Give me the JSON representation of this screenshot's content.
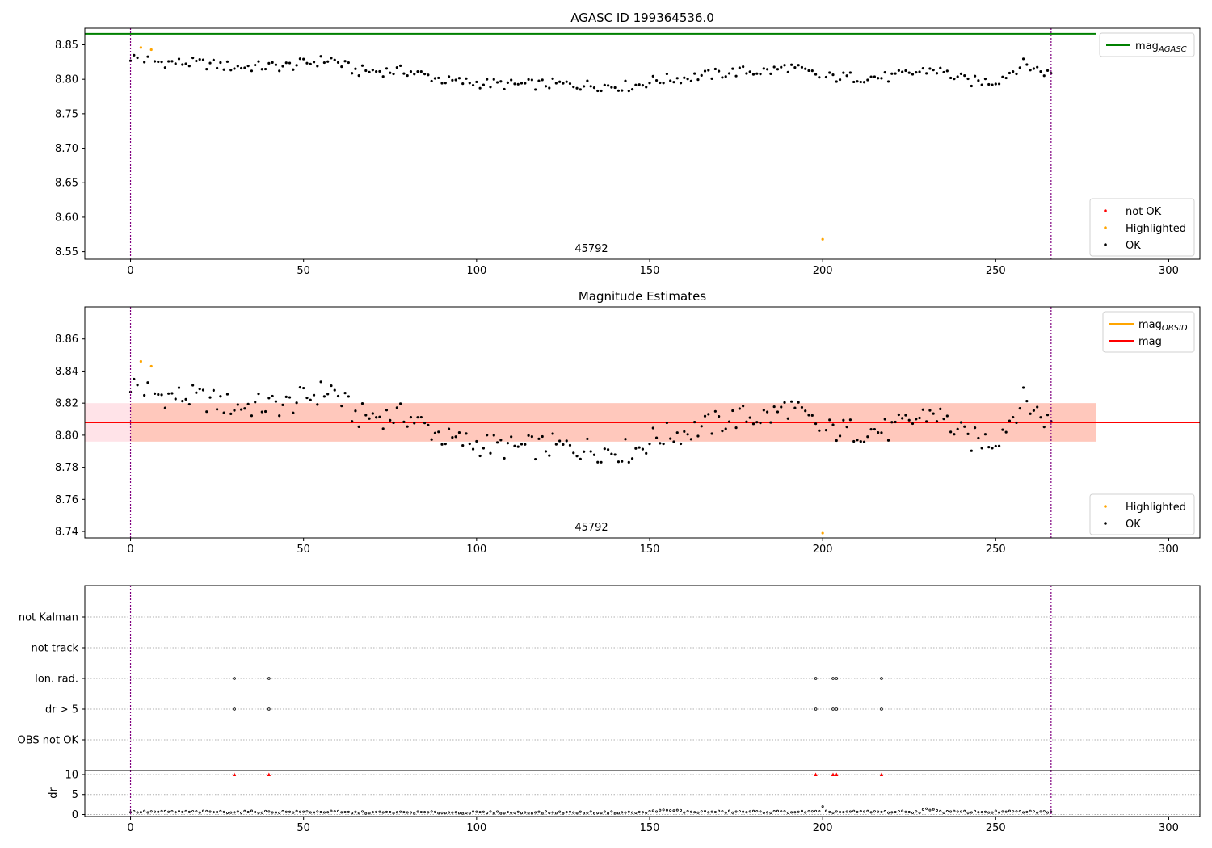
{
  "chart_data": [
    {
      "type": "scatter",
      "title": "AGASC ID 199364536.0",
      "xlabel": "",
      "ylabel": "",
      "xlim": [
        -13.2,
        309
      ],
      "ylim": [
        8.539,
        8.874
      ],
      "xticks": [
        0,
        50,
        100,
        150,
        200,
        250,
        300
      ],
      "yticks": [
        8.55,
        8.6,
        8.65,
        8.7,
        8.75,
        8.8,
        8.85
      ],
      "annotation": "45792",
      "hline": {
        "name": "mag_AGASC",
        "value": 8.866,
        "color": "#008000",
        "x_range": [
          -13.2,
          279
        ]
      },
      "vlines": [
        0,
        266
      ],
      "legends": [
        {
          "position": "top-right",
          "entries": [
            {
              "label": "mag",
              "sub": "AGASC",
              "color": "#008000",
              "kind": "line"
            }
          ]
        },
        {
          "position": "bottom-right",
          "entries": [
            {
              "label": "not OK",
              "color": "#ff0000",
              "kind": "dot"
            },
            {
              "label": "Highlighted",
              "color": "#ffa500",
              "kind": "dot"
            },
            {
              "label": "OK",
              "color": "#000000",
              "kind": "dot"
            }
          ]
        }
      ]
    },
    {
      "type": "scatter",
      "title": "Magnitude Estimates",
      "xlabel": "",
      "ylabel": "",
      "xlim": [
        -13.2,
        309
      ],
      "ylim": [
        8.736,
        8.88
      ],
      "xticks": [
        0,
        50,
        100,
        150,
        200,
        250,
        300
      ],
      "yticks": [
        8.74,
        8.76,
        8.78,
        8.8,
        8.82,
        8.84,
        8.86
      ],
      "annotation": "45792",
      "mean_line": {
        "name": "mag",
        "value": 8.808,
        "color": "#ff0000"
      },
      "bands": [
        {
          "y": [
            8.796,
            8.82
          ],
          "x_range": [
            -13.2,
            279
          ],
          "color": "#ffc0cb"
        },
        {
          "y": [
            8.796,
            8.82
          ],
          "x_range": [
            0,
            279
          ],
          "color": "#ffa07a"
        }
      ],
      "vlines": [
        0,
        266
      ],
      "legends": [
        {
          "position": "top-right",
          "entries": [
            {
              "label": "mag",
              "sub": "OBSID",
              "color": "#ffa500",
              "kind": "line"
            },
            {
              "label": "mag",
              "sub": "",
              "color": "#ff0000",
              "kind": "line"
            }
          ]
        },
        {
          "position": "bottom-right",
          "entries": [
            {
              "label": "Highlighted",
              "color": "#ffa500",
              "kind": "dot"
            },
            {
              "label": "OK",
              "color": "#000000",
              "kind": "dot"
            }
          ]
        }
      ]
    },
    {
      "type": "scatter",
      "title": "",
      "xlim": [
        -13.2,
        309
      ],
      "flag_categories": [
        "not Kalman",
        "not track",
        "Ion. rad.",
        "dr > 5",
        "OBS not OK"
      ],
      "flags": {
        "Ion. rad.": [
          30,
          40,
          198,
          203,
          204,
          217
        ],
        "dr > 5": [
          30,
          40,
          198,
          203,
          204,
          217
        ]
      },
      "dr_panel": {
        "ylabel": "dr",
        "ylim": [
          -0.5,
          11
        ],
        "yticks": [
          0,
          5,
          10
        ],
        "xticks": [
          0,
          50,
          100,
          150,
          200,
          250,
          300
        ],
        "capped_points": [
          30,
          40,
          198,
          203,
          204,
          217
        ],
        "cap_value": 10,
        "outlier": {
          "x": 200,
          "y": 2.0
        }
      },
      "vlines": [
        0,
        266
      ]
    }
  ]
}
